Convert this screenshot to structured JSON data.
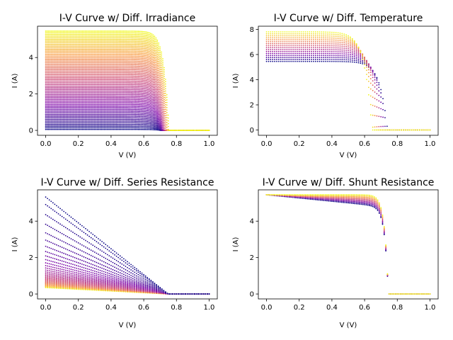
{
  "chart_data": [
    {
      "type": "scatter",
      "title": "I-V Curve w/ Diff. Irradiance",
      "xlabel": "V (V)",
      "ylabel": "I (A)",
      "xlim": [
        -0.05,
        1.05
      ],
      "ylim": [
        -0.27,
        5.72
      ],
      "xticks": [
        "0.0",
        "0.2",
        "0.4",
        "0.6",
        "0.8",
        "1.0"
      ],
      "xtick_values": [
        0,
        0.2,
        0.4,
        0.6,
        0.8,
        1.0
      ],
      "yticks": [
        "0",
        "2",
        "4"
      ],
      "ytick_values": [
        0,
        2,
        4
      ],
      "colormap": "plasma",
      "model": {
        "param": "irradiance",
        "Isc": [
          0.05,
          5.45
        ],
        "Voc": [
          0.7,
          0.755
        ],
        "curves": 60,
        "points": 120,
        "knee": 0.03
      },
      "series_summary": "Family of I-V curves; short-circuit current scales from about 0.05 A (dark blue) to 5.45 A (yellow) with irradiance; curves drop near V ≈ 0.72–0.75 V"
    },
    {
      "type": "scatter",
      "title": "I-V Curve w/ Diff. Temperature",
      "xlabel": "V (V)",
      "ylabel": "I (A)",
      "xlim": [
        -0.05,
        1.05
      ],
      "ylim": [
        -0.42,
        8.25
      ],
      "xticks": [
        "0.0",
        "0.2",
        "0.4",
        "0.6",
        "0.8",
        "1.0"
      ],
      "xtick_values": [
        0,
        0.2,
        0.4,
        0.6,
        0.8,
        1.0
      ],
      "yticks": [
        "0",
        "2",
        "4",
        "6",
        "8"
      ],
      "ytick_values": [
        0,
        2,
        4,
        6,
        8
      ],
      "colormap": "plasma",
      "model": {
        "param": "temperature",
        "Isc": [
          5.45,
          7.8
        ],
        "Voc": [
          0.74,
          0.645
        ],
        "curves": 16,
        "points": 80,
        "knee": 0.045
      },
      "series_summary": "Higher temperature (yellow) raises Isc to about 7.8 A and lowers Voc to about 0.64 V; lower temperature (blue) Isc about 5.45 A, Voc about 0.74 V"
    },
    {
      "type": "scatter",
      "title": "I-V Curve w/ Diff. Series Resistance",
      "xlabel": "V (V)",
      "ylabel": "I (A)",
      "xlim": [
        -0.05,
        1.05
      ],
      "ylim": [
        -0.27,
        5.72
      ],
      "xticks": [
        "0.0",
        "0.2",
        "0.4",
        "0.6",
        "0.8",
        "1.0"
      ],
      "xtick_values": [
        0,
        0.2,
        0.4,
        0.6,
        0.8,
        1.0
      ],
      "yticks": [
        "0",
        "2",
        "4"
      ],
      "ytick_values": [
        0,
        2,
        4
      ],
      "colormap": "plasma_r",
      "model": {
        "param": "series_resistance",
        "Isc": 5.4,
        "Voc": 0.75,
        "curves": 40,
        "points": 90,
        "I_at_zero_min": 0.35
      },
      "series_summary": "Low series resistance (blue) keeps a square curve near 5.4 A; increasing series resistance (toward yellow) makes curves linear, down to about 0.35 A at V = 0"
    },
    {
      "type": "scatter",
      "title": "I-V Curve w/ Diff. Shunt Resistance",
      "xlabel": "V (V)",
      "ylabel": "I (A)",
      "xlim": [
        -0.05,
        1.05
      ],
      "ylim": [
        -0.27,
        5.72
      ],
      "xticks": [
        "0.0",
        "0.2",
        "0.4",
        "0.6",
        "0.8",
        "1.0"
      ],
      "xtick_values": [
        0,
        0.2,
        0.4,
        0.6,
        0.8,
        1.0
      ],
      "yticks": [
        "0",
        "2",
        "4"
      ],
      "ytick_values": [
        0,
        2,
        4
      ],
      "colormap": "plasma",
      "model": {
        "param": "shunt_resistance",
        "Isc": 5.45,
        "Voc": 0.745,
        "curves": 10,
        "points": 100,
        "slope_max": 0.9
      },
      "series_summary": "Low shunt resistance (blue) droops from 5.4 A to about 4.8 A before the knee; high shunt resistance (yellow) stays flat near 5.45 A"
    }
  ]
}
